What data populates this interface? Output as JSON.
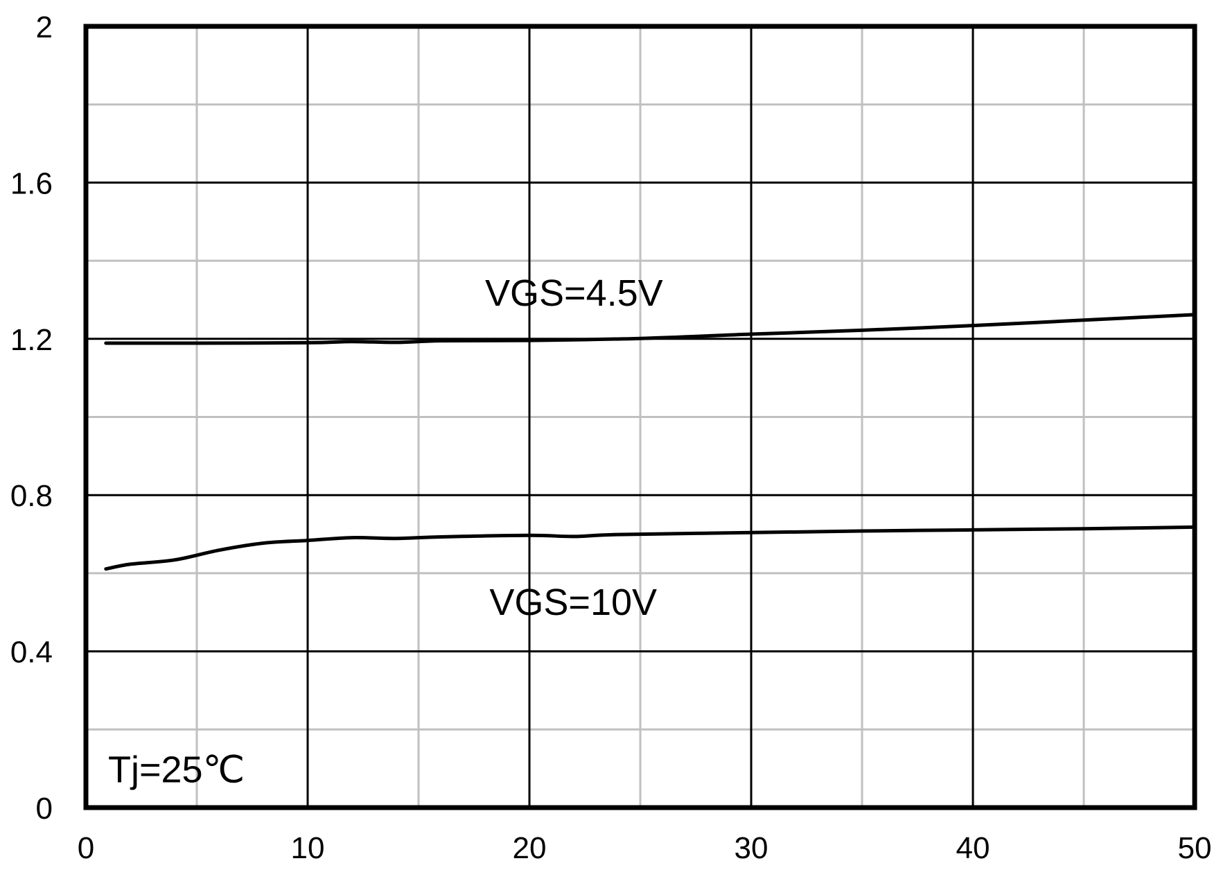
{
  "chart_data": {
    "type": "line",
    "title": "",
    "xlabel": "",
    "ylabel": "",
    "xlim": [
      0,
      50
    ],
    "ylim": [
      0,
      2
    ],
    "x_major_ticks": [
      0,
      10,
      20,
      30,
      40,
      50
    ],
    "x_tick_labels": [
      "0",
      "10",
      "20",
      "30",
      "40",
      "50"
    ],
    "x_minor_gridlines": [
      5,
      15,
      25,
      35,
      45
    ],
    "y_major_ticks": [
      0,
      0.4,
      0.8,
      1.2,
      1.6,
      2
    ],
    "y_tick_labels": [
      "0",
      "0.4",
      "0.8",
      "1.2",
      "1.6",
      "2"
    ],
    "y_minor_gridlines": [
      0.2,
      0.6,
      1.0,
      1.4,
      1.8
    ],
    "grid": true,
    "colors": {
      "line": "#000000",
      "major_grid": "#000000",
      "minor_grid": "#c0c0c0",
      "frame": "#000000"
    },
    "series": [
      {
        "name": "VGS=4.5V",
        "x": [
          0.9,
          5,
          10,
          12,
          14,
          16,
          20,
          25,
          30,
          35,
          40,
          45,
          50
        ],
        "values": [
          1.189,
          1.189,
          1.19,
          1.193,
          1.191,
          1.195,
          1.196,
          1.201,
          1.212,
          1.222,
          1.234,
          1.248,
          1.262
        ]
      },
      {
        "name": "VGS=10V",
        "x": [
          0.9,
          2,
          4,
          6,
          8,
          10,
          12,
          14,
          16,
          20,
          22,
          24,
          30,
          35,
          40,
          45,
          50
        ],
        "values": [
          0.611,
          0.623,
          0.634,
          0.659,
          0.677,
          0.684,
          0.691,
          0.689,
          0.693,
          0.697,
          0.694,
          0.699,
          0.704,
          0.708,
          0.711,
          0.714,
          0.718
        ]
      }
    ],
    "series_labels": [
      {
        "text": "VGS=4.5V",
        "x": 18.0,
        "y": 1.285
      },
      {
        "text": "VGS=10V",
        "x": 18.2,
        "y": 0.493
      }
    ],
    "annotations": [
      {
        "text": "Tj=25℃",
        "x": 1.0,
        "y": 0.065
      }
    ]
  }
}
